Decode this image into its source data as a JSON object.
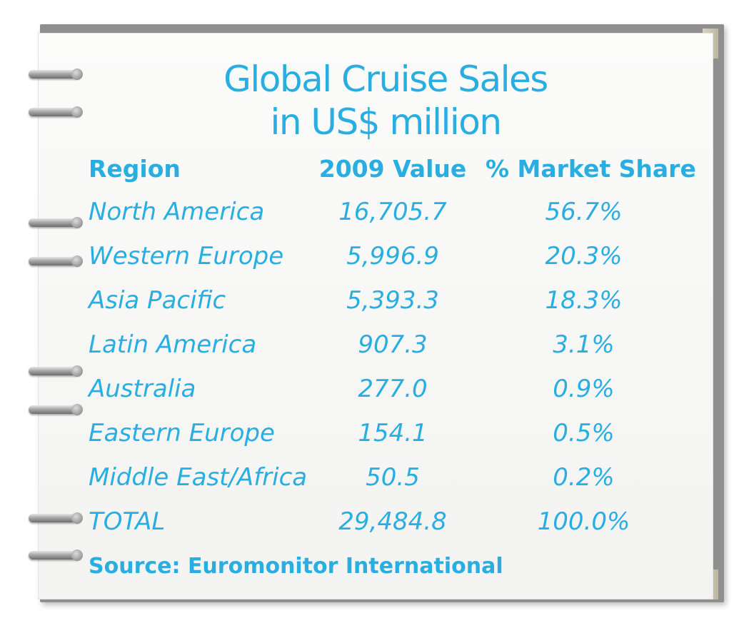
{
  "chart_data": {
    "type": "table",
    "title": "Global Cruise Sales",
    "subtitle": "in US$ million",
    "columns": [
      "Region",
      "2009 Value",
      "% Market Share"
    ],
    "rows": [
      {
        "region": "North America",
        "value": "16,705.7",
        "share": "56.7%"
      },
      {
        "region": "Western Europe",
        "value": "5,996.9",
        "share": "20.3%"
      },
      {
        "region": "Asia Pacific",
        "value": "5,393.3",
        "share": "18.3%"
      },
      {
        "region": "Latin America",
        "value": "907.3",
        "share": "3.1%"
      },
      {
        "region": "Australia",
        "value": "277.0",
        "share": "0.9%"
      },
      {
        "region": "Eastern Europe",
        "value": "154.1",
        "share": "0.5%"
      },
      {
        "region": "Middle East/Africa",
        "value": "50.5",
        "share": "0.2%"
      },
      {
        "region": "TOTAL",
        "value": "29,484.8",
        "share": "100.0%"
      }
    ],
    "source": "Source: Euromonitor International",
    "text_color": "#29aee1"
  }
}
